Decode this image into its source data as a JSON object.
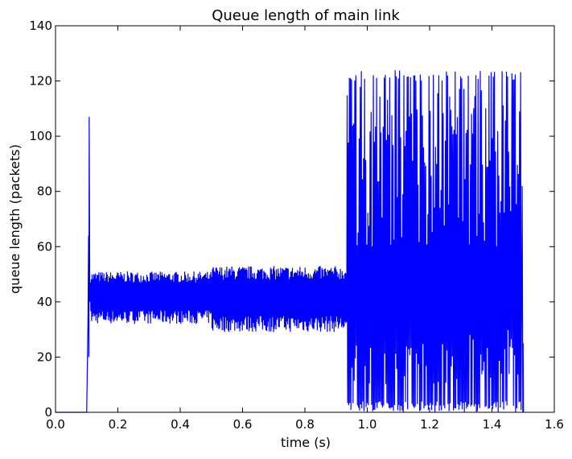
{
  "chart_data": {
    "type": "line",
    "title": "Queue length of main link",
    "xlabel": "time (s)",
    "ylabel": "queue length (packets)",
    "xlim": [
      0.0,
      1.6
    ],
    "ylim": [
      0,
      140
    ],
    "x_ticks": [
      "0.0",
      "0.2",
      "0.4",
      "0.6",
      "0.8",
      "1.0",
      "1.2",
      "1.4",
      "1.6"
    ],
    "y_ticks": [
      "0",
      "20",
      "40",
      "60",
      "80",
      "100",
      "120",
      "140"
    ],
    "grid": false,
    "legend": "none",
    "series_color": "#0000ff",
    "series": [
      {
        "x": [
          0.0,
          0.1,
          0.104,
          0.106,
          0.108,
          0.11,
          0.112,
          0.116,
          0.2,
          0.3,
          0.4,
          0.49,
          0.5,
          0.6,
          0.7,
          0.8,
          0.93,
          0.94,
          0.95,
          1.0,
          1.1,
          1.15,
          1.2,
          1.3,
          1.4,
          1.45,
          1.49,
          1.5
        ],
        "y": [
          0,
          0,
          32,
          64,
          107,
          40,
          51,
          33,
          51,
          32,
          51,
          33,
          53,
          29,
          52,
          30,
          52,
          0,
          121,
          0,
          123,
          124,
          0,
          123,
          0,
          123,
          82,
          0
        ]
      }
    ]
  }
}
